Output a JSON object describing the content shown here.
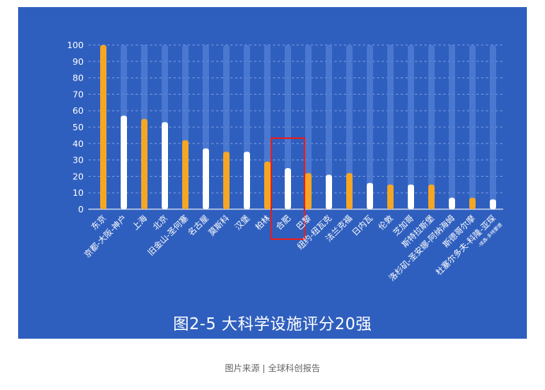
{
  "chart_data": {
    "type": "bar",
    "title": "图2-5 大科学设施评分20强",
    "categories": [
      "东京",
      "京都-大阪-神户",
      "上海",
      "北京",
      "旧金山-圣何塞",
      "名古屋",
      "莫斯科",
      "汉堡",
      "柏林",
      "合肥",
      "巴黎",
      "纽约-纽瓦克",
      "法兰克福",
      "日内瓦",
      "伦敦",
      "芝加哥",
      "斯特拉斯堡",
      "洛杉矶-圣安娜-阿纳海姆",
      "斯德哥尔摩",
      "杜塞尔多夫-科隆-亚琛"
    ],
    "category_sublabels": {
      "杜塞尔多夫-科隆-亚琛": "-埃森-多特蒙德"
    },
    "values": [
      100,
      57,
      55,
      53,
      42,
      37,
      35,
      35,
      29,
      25,
      22,
      21,
      22,
      16,
      15,
      15,
      15,
      7,
      7,
      6
    ],
    "bar_colors": [
      "#f5a623",
      "#ffffff",
      "#f5a623",
      "#ffffff",
      "#f5a623",
      "#ffffff",
      "#f5a623",
      "#ffffff",
      "#f5a623",
      "#ffffff",
      "#f5a623",
      "#ffffff",
      "#f5a623",
      "#ffffff",
      "#f5a623",
      "#ffffff",
      "#f5a623",
      "#ffffff",
      "#f5a623",
      "#ffffff"
    ],
    "ylim": [
      0,
      100
    ],
    "yticks": [
      0,
      10,
      20,
      30,
      40,
      50,
      60,
      70,
      80,
      90,
      100
    ],
    "grid": true,
    "highlight_category": "合肥",
    "colors": {
      "background": "#2f5fbe",
      "track": "#5480d6",
      "highlight_box": "#e02020",
      "grid": "#8aa6e6",
      "text": "#ffffff"
    }
  },
  "caption": "图片来源 | 全球科创报告"
}
